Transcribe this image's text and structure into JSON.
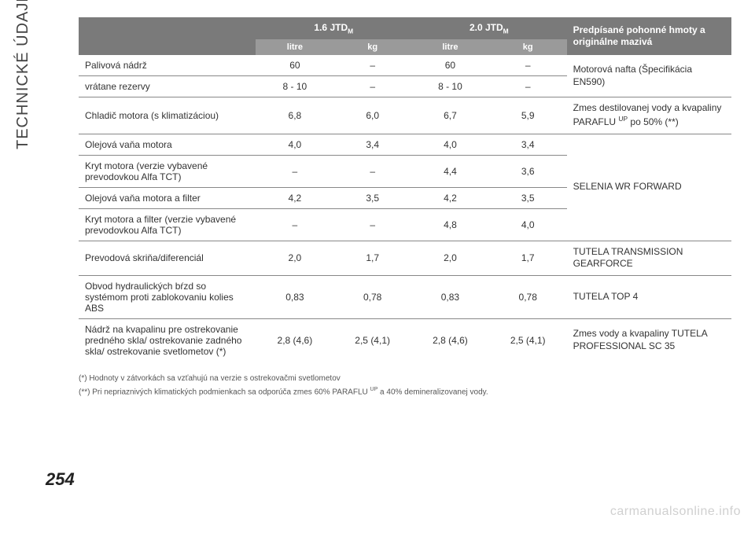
{
  "sidebar_label": "TECHNICKÉ ÚDAJE",
  "page_number": "254",
  "watermark": "carmanualsonline.info",
  "table": {
    "header": {
      "blank": "",
      "eng1": "1.6 JTD",
      "eng2": "2.0 JTD",
      "eng_sub": "M",
      "desc": "Predpísané pohonné hmoty a originálne mazivá",
      "litre": "litre",
      "kg": "kg"
    },
    "rows": [
      {
        "label": "Palivová nádrž",
        "l1": "60",
        "k1": "–",
        "l2": "60",
        "k2": "–",
        "desc": "Motorová nafta (Špecifikácia EN590)",
        "desc_rowspan": 2
      },
      {
        "label": "vrátane rezervy",
        "l1": "8 - 10",
        "k1": "–",
        "l2": "8 - 10",
        "k2": "–"
      },
      {
        "label": "Chladič motora (s klimatizáciou)",
        "l1": "6,8",
        "k1": "6,0",
        "l2": "6,7",
        "k2": "5,9",
        "desc": "Zmes destilovanej vody a kvapaliny PARAFLU",
        "desc_sup": "UP",
        "desc_tail": " po 50% (**)",
        "desc_rowspan": 1
      },
      {
        "label": "Olejová vaňa motora",
        "l1": "4,0",
        "k1": "3,4",
        "l2": "4,0",
        "k2": "3,4",
        "desc": "SELENIA WR FORWARD",
        "desc_rowspan": 4
      },
      {
        "label": "Kryt motora (verzie vybavené prevodovkou Alfa TCT)",
        "l1": "–",
        "k1": "–",
        "l2": "4,4",
        "k2": "3,6"
      },
      {
        "label": "Olejová vaňa motora a filter",
        "l1": "4,2",
        "k1": "3,5",
        "l2": "4,2",
        "k2": "3,5"
      },
      {
        "label": "Kryt motora a filter (verzie vybavené prevodovkou Alfa TCT)",
        "l1": "–",
        "k1": "–",
        "l2": "4,8",
        "k2": "4,0"
      },
      {
        "label": "Prevodová skriňa/diferenciál",
        "l1": "2,0",
        "k1": "1,7",
        "l2": "2,0",
        "k2": "1,7",
        "desc": "TUTELA TRANSMISSION GEARFORCE",
        "desc_rowspan": 1
      },
      {
        "label": "Obvod hydraulických bŕzd so systémom proti zablokovaniu kolies ABS",
        "l1": "0,83",
        "k1": "0,78",
        "l2": "0,83",
        "k2": "0,78",
        "desc": "TUTELA TOP 4",
        "desc_rowspan": 1
      },
      {
        "label": "Nádrž na kvapalinu pre ostrekovanie predného skla/ ostrekovanie zadného skla/ ostrekovanie svetlometov (*)",
        "l1": "2,8 (4,6)",
        "k1": "2,5 (4,1)",
        "l2": "2,8 (4,6)",
        "k2": "2,5 (4,1)",
        "desc": "Zmes vody a kvapaliny TUTELA PROFESSIONAL SC 35",
        "desc_rowspan": 1
      }
    ]
  },
  "footnotes": {
    "f1": "(*) Hodnoty v zátvorkách sa vzťahujú na verzie s ostrekovačmi svetlometov",
    "f2_a": "(**) Pri nepriaznivých klimatických podmienkach sa odporúča zmes 60% PARAFLU ",
    "f2_sup": "UP",
    "f2_b": " a 40% demineralizovanej vody."
  }
}
